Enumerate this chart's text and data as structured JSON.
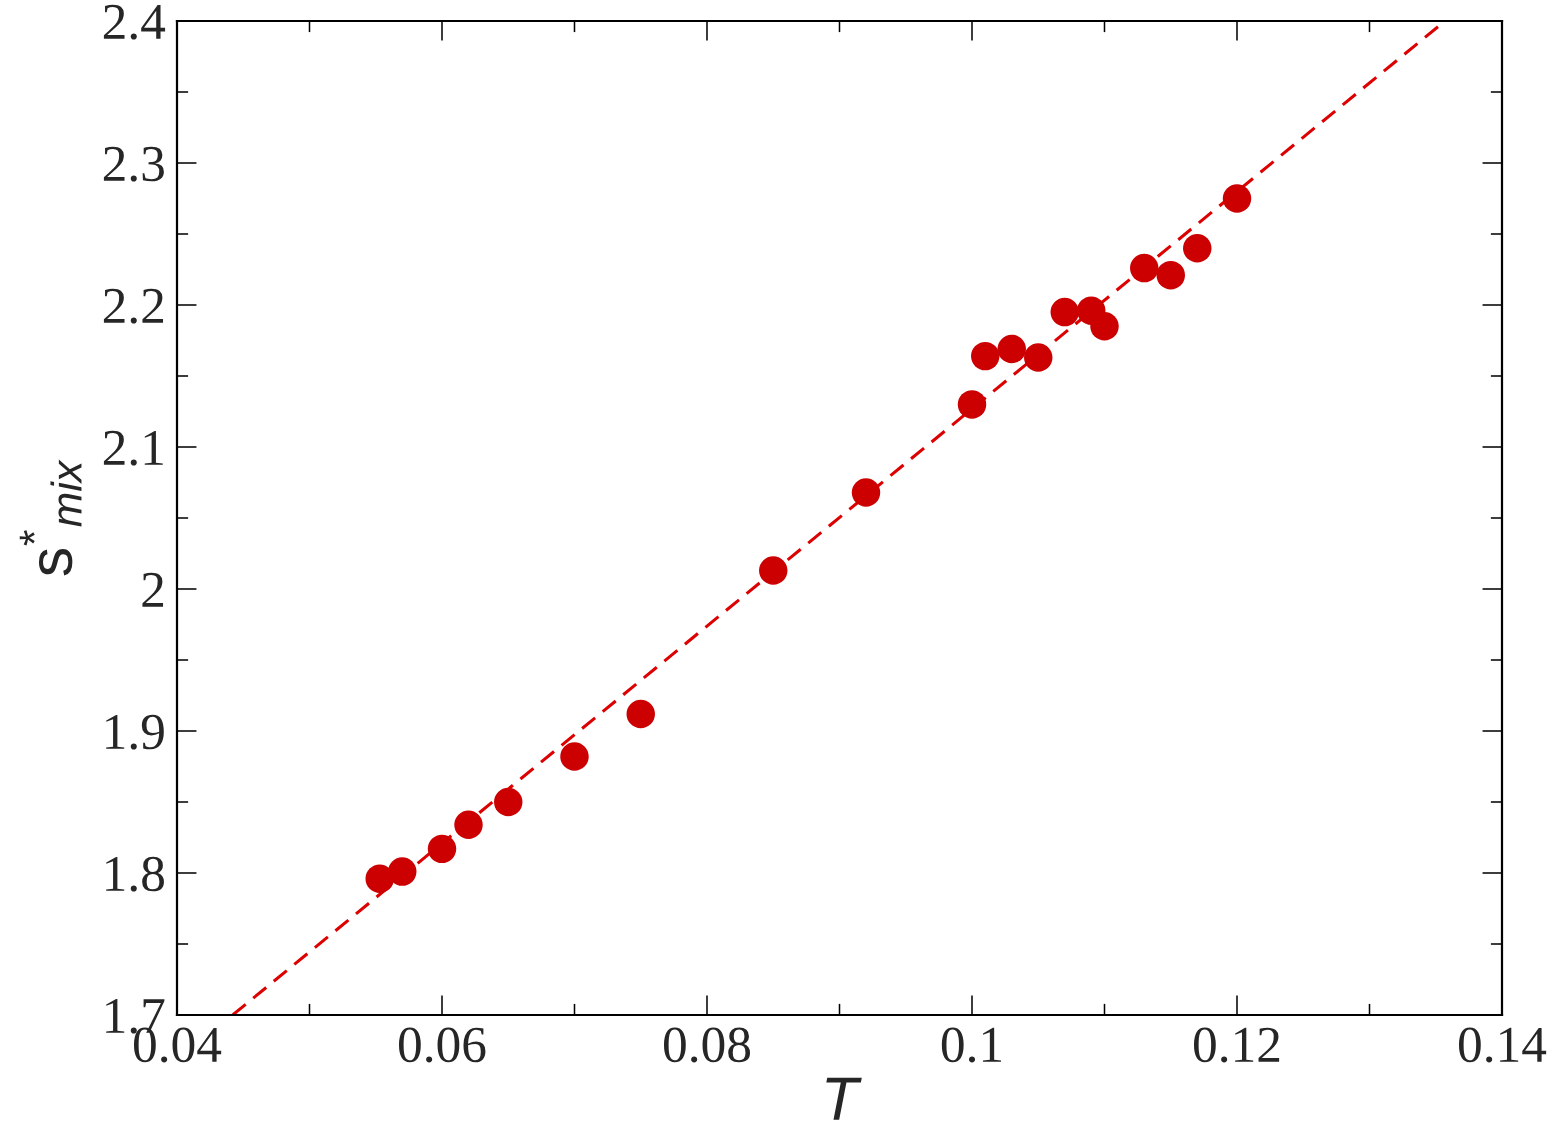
{
  "chart_data": {
    "type": "scatter",
    "xlabel": "T",
    "ylabel": "s$^{*}$$_{mix}$",
    "xlim": [
      0.04,
      0.14
    ],
    "ylim": [
      1.7,
      2.4
    ],
    "xticks": [
      0.04,
      0.06,
      0.08,
      0.1,
      0.12,
      0.14
    ],
    "yticks": [
      1.7,
      1.8,
      1.9,
      2,
      2.1,
      2.2,
      2.3,
      2.4
    ],
    "series": [
      {
        "color": "#cc0000",
        "marker": "circle",
        "x": [
          0.0553,
          0.057,
          0.06,
          0.062,
          0.065,
          0.07,
          0.075,
          0.085,
          0.092,
          0.1,
          0.101,
          0.103,
          0.105,
          0.107,
          0.109,
          0.11,
          0.113,
          0.115,
          0.117,
          0.12
        ],
        "values": [
          1.796,
          1.801,
          1.817,
          1.834,
          1.85,
          1.882,
          1.912,
          2.013,
          2.068,
          2.13,
          2.164,
          2.169,
          2.163,
          2.195,
          2.196,
          2.185,
          2.226,
          2.221,
          2.24,
          2.275
        ]
      },
      {
        "type": "line",
        "color": "#dd0000",
        "line_style": "dashed",
        "marker": "none",
        "x": [
          0.0442,
          0.1357
        ],
        "values": [
          1.7,
          2.4
        ]
      }
    ]
  }
}
